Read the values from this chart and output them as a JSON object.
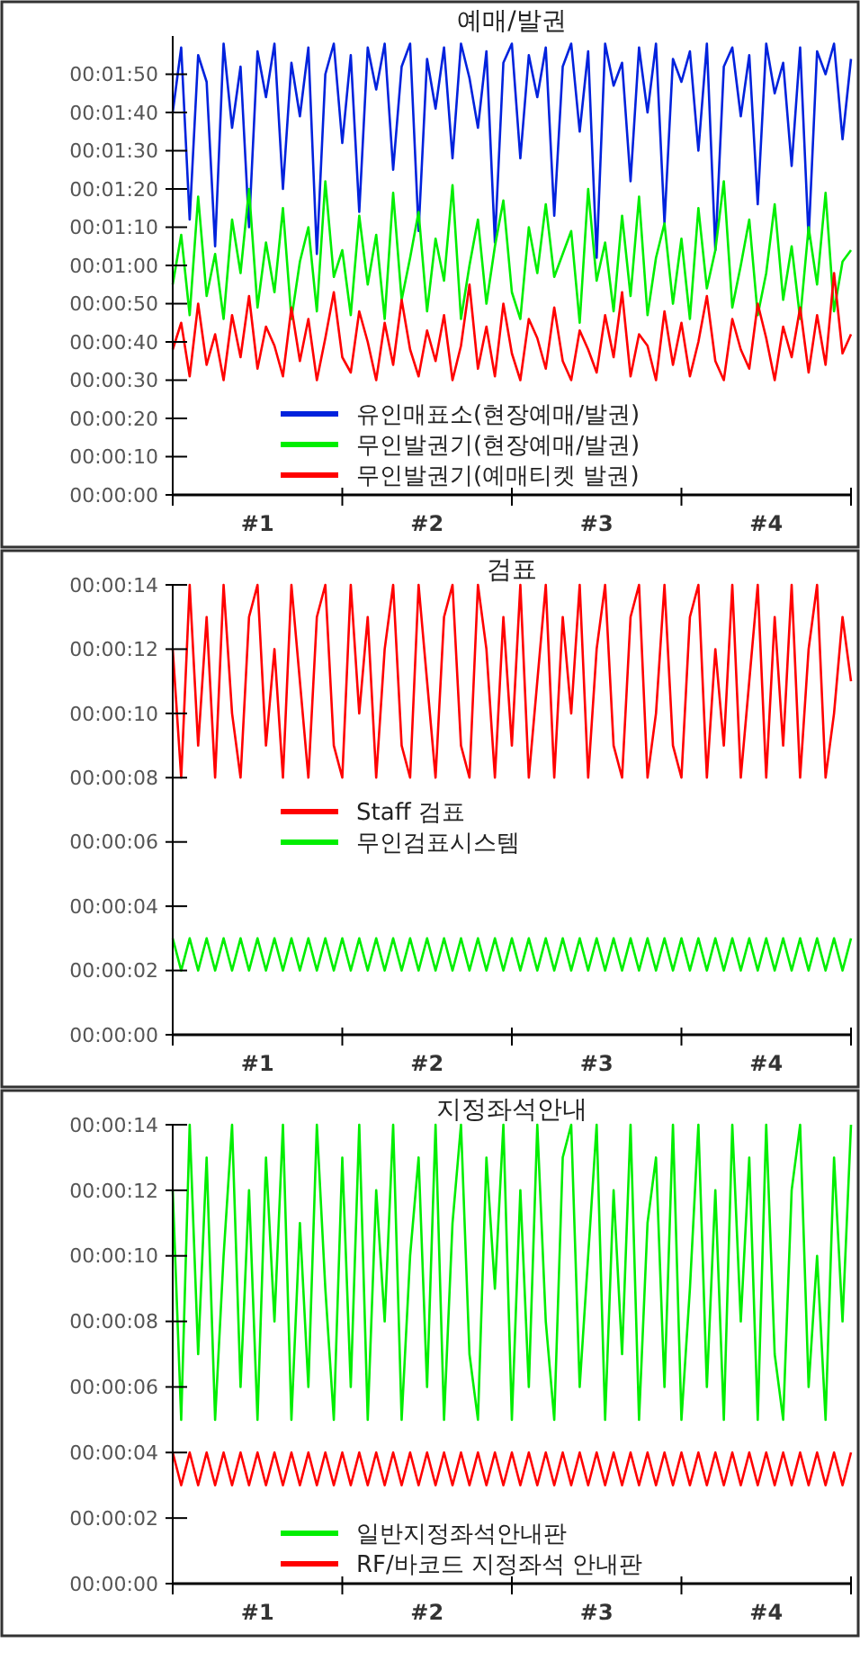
{
  "chart_data": [
    {
      "type": "line",
      "title": "예매/발권",
      "x": [
        0,
        0.05,
        0.1,
        0.15,
        0.2,
        0.25,
        0.3,
        0.35,
        0.4,
        0.45,
        0.5,
        0.55,
        0.6,
        0.65,
        0.7,
        0.75,
        0.8,
        0.85,
        0.9,
        0.95,
        1,
        1.05,
        1.1,
        1.15,
        1.2,
        1.25,
        1.3,
        1.35,
        1.4,
        1.45,
        1.5,
        1.55,
        1.6,
        1.65,
        1.7,
        1.75,
        1.8,
        1.85,
        1.9,
        1.95,
        2,
        2.05,
        2.1,
        2.15,
        2.2,
        2.25,
        2.3,
        2.35,
        2.4,
        2.45,
        2.5,
        2.55,
        2.6,
        2.65,
        2.7,
        2.75,
        2.8,
        2.85,
        2.9,
        2.95,
        3,
        3.05,
        3.1,
        3.15,
        3.2,
        3.25,
        3.3,
        3.35,
        3.4,
        3.45,
        3.5,
        3.55,
        3.6,
        3.65,
        3.7,
        3.75,
        3.8,
        3.85,
        3.9,
        3.95,
        4
      ],
      "xlim": [
        0,
        4
      ],
      "xticks": [
        {
          "value": 0,
          "label": null
        },
        {
          "value": 0.5,
          "label": "#1"
        },
        {
          "value": 1,
          "label": null
        },
        {
          "value": 1.5,
          "label": "#2"
        },
        {
          "value": 2,
          "label": null
        },
        {
          "value": 2.5,
          "label": "#3"
        },
        {
          "value": 3,
          "label": null
        },
        {
          "value": 3.5,
          "label": "#4"
        },
        {
          "value": 4,
          "label": null
        }
      ],
      "ylim": [
        0,
        120
      ],
      "yticks": [
        {
          "value": 0,
          "label": "00:00:00"
        },
        {
          "value": 10,
          "label": "00:00:10"
        },
        {
          "value": 20,
          "label": "00:00:20"
        },
        {
          "value": 30,
          "label": "00:00:30"
        },
        {
          "value": 40,
          "label": "00:00:40"
        },
        {
          "value": 50,
          "label": "00:00:50"
        },
        {
          "value": 60,
          "label": "00:01:00"
        },
        {
          "value": 70,
          "label": "00:01:10"
        },
        {
          "value": 80,
          "label": "00:01:20"
        },
        {
          "value": 90,
          "label": "00:01:30"
        },
        {
          "value": 100,
          "label": "00:01:40"
        },
        {
          "value": 110,
          "label": "00:01:50"
        }
      ],
      "legend": "bottom",
      "grid": false,
      "series": [
        {
          "name": "유인매표소(현장예매/발권)",
          "color": "#0022dd",
          "values": [
            100,
            117,
            72,
            115,
            108,
            65,
            118,
            96,
            112,
            70,
            116,
            104,
            118,
            80,
            113,
            99,
            117,
            63,
            110,
            118,
            92,
            115,
            74,
            117,
            106,
            118,
            85,
            112,
            118,
            69,
            114,
            101,
            117,
            88,
            118,
            109,
            96,
            116,
            66,
            113,
            118,
            88,
            115,
            104,
            117,
            73,
            112,
            118,
            95,
            116,
            62,
            118,
            107,
            113,
            82,
            117,
            100,
            118,
            71,
            114,
            108,
            116,
            90,
            118,
            64,
            112,
            117,
            99,
            115,
            76,
            118,
            105,
            113,
            86,
            117,
            67,
            116,
            110,
            118,
            93,
            114
          ]
        },
        {
          "name": "무인발권기(현장예매/발권)",
          "color": "#00ee00",
          "values": [
            55,
            68,
            47,
            78,
            52,
            63,
            46,
            72,
            58,
            80,
            49,
            66,
            53,
            75,
            46,
            61,
            70,
            48,
            82,
            57,
            64,
            47,
            73,
            55,
            68,
            46,
            79,
            51,
            62,
            74,
            48,
            67,
            56,
            81,
            46,
            60,
            72,
            50,
            65,
            77,
            53,
            46,
            70,
            58,
            76,
            57,
            63,
            69,
            45,
            80,
            56,
            66,
            48,
            73,
            52,
            78,
            47,
            62,
            71,
            50,
            67,
            46,
            75,
            54,
            64,
            82,
            49,
            60,
            72,
            47,
            58,
            76,
            51,
            65,
            46,
            70,
            55,
            79,
            48,
            61,
            64
          ]
        },
        {
          "name": "무인발권기(예매티켓 발권)",
          "color": "#ff0000",
          "values": [
            38,
            45,
            31,
            50,
            34,
            42,
            30,
            47,
            36,
            52,
            33,
            44,
            39,
            31,
            49,
            35,
            46,
            30,
            41,
            53,
            36,
            32,
            48,
            40,
            30,
            45,
            34,
            51,
            38,
            31,
            43,
            35,
            47,
            30,
            39,
            55,
            33,
            44,
            31,
            50,
            37,
            30,
            46,
            41,
            33,
            49,
            35,
            30,
            43,
            38,
            32,
            47,
            36,
            53,
            31,
            42,
            39,
            30,
            48,
            34,
            45,
            31,
            40,
            52,
            35,
            30,
            46,
            38,
            33,
            50,
            41,
            30,
            44,
            36,
            49,
            32,
            47,
            34,
            58,
            37,
            42
          ]
        }
      ]
    },
    {
      "type": "line",
      "title": "검표",
      "x": [
        0,
        0.05,
        0.1,
        0.15,
        0.2,
        0.25,
        0.3,
        0.35,
        0.4,
        0.45,
        0.5,
        0.55,
        0.6,
        0.65,
        0.7,
        0.75,
        0.8,
        0.85,
        0.9,
        0.95,
        1,
        1.05,
        1.1,
        1.15,
        1.2,
        1.25,
        1.3,
        1.35,
        1.4,
        1.45,
        1.5,
        1.55,
        1.6,
        1.65,
        1.7,
        1.75,
        1.8,
        1.85,
        1.9,
        1.95,
        2,
        2.05,
        2.1,
        2.15,
        2.2,
        2.25,
        2.3,
        2.35,
        2.4,
        2.45,
        2.5,
        2.55,
        2.6,
        2.65,
        2.7,
        2.75,
        2.8,
        2.85,
        2.9,
        2.95,
        3,
        3.05,
        3.1,
        3.15,
        3.2,
        3.25,
        3.3,
        3.35,
        3.4,
        3.45,
        3.5,
        3.55,
        3.6,
        3.65,
        3.7,
        3.75,
        3.8,
        3.85,
        3.9,
        3.95,
        4
      ],
      "xlim": [
        0,
        4
      ],
      "xticks": [
        {
          "value": 0,
          "label": null
        },
        {
          "value": 0.5,
          "label": "#1"
        },
        {
          "value": 1,
          "label": null
        },
        {
          "value": 1.5,
          "label": "#2"
        },
        {
          "value": 2,
          "label": null
        },
        {
          "value": 2.5,
          "label": "#3"
        },
        {
          "value": 3,
          "label": null
        },
        {
          "value": 3.5,
          "label": "#4"
        },
        {
          "value": 4,
          "label": null
        }
      ],
      "ylim": [
        0,
        14
      ],
      "yticks": [
        {
          "value": 0,
          "label": "00:00:00"
        },
        {
          "value": 2,
          "label": "00:00:02"
        },
        {
          "value": 4,
          "label": "00:00:04"
        },
        {
          "value": 6,
          "label": "00:00:06"
        },
        {
          "value": 8,
          "label": "00:00:08"
        },
        {
          "value": 10,
          "label": "00:00:10"
        },
        {
          "value": 12,
          "label": "00:00:12"
        },
        {
          "value": 14,
          "label": "00:00:14"
        }
      ],
      "legend": "center",
      "grid": false,
      "series": [
        {
          "name": "Staff 검표",
          "color": "#ff0000",
          "values": [
            12,
            8,
            14,
            9,
            13,
            8,
            14,
            10,
            8,
            13,
            14,
            9,
            12,
            8,
            14,
            11,
            8,
            13,
            14,
            9,
            8,
            14,
            10,
            13,
            8,
            12,
            14,
            9,
            8,
            14,
            11,
            8,
            13,
            14,
            9,
            8,
            14,
            12,
            8,
            13,
            9,
            14,
            8,
            11,
            14,
            8,
            13,
            10,
            14,
            8,
            12,
            14,
            9,
            8,
            13,
            14,
            8,
            10,
            14,
            9,
            8,
            13,
            14,
            8,
            12,
            9,
            14,
            8,
            11,
            14,
            8,
            13,
            9,
            14,
            8,
            12,
            14,
            8,
            10,
            13,
            11
          ]
        },
        {
          "name": "무인검표시스템",
          "color": "#00ee00",
          "values": [
            3,
            2,
            3,
            2,
            3,
            2,
            3,
            2,
            3,
            2,
            3,
            2,
            3,
            2,
            3,
            2,
            3,
            2,
            3,
            2,
            3,
            2,
            3,
            2,
            3,
            2,
            3,
            2,
            3,
            2,
            3,
            2,
            3,
            2,
            3,
            2,
            3,
            2,
            3,
            2,
            3,
            2,
            3,
            2,
            3,
            2,
            3,
            2,
            3,
            2,
            3,
            2,
            3,
            2,
            3,
            2,
            3,
            2,
            3,
            2,
            3,
            2,
            3,
            2,
            3,
            2,
            3,
            2,
            3,
            2,
            3,
            2,
            3,
            2,
            3,
            2,
            3,
            2,
            3,
            2,
            3
          ]
        }
      ]
    },
    {
      "type": "line",
      "title": "지정좌석안내",
      "x": [
        0,
        0.05,
        0.1,
        0.15,
        0.2,
        0.25,
        0.3,
        0.35,
        0.4,
        0.45,
        0.5,
        0.55,
        0.6,
        0.65,
        0.7,
        0.75,
        0.8,
        0.85,
        0.9,
        0.95,
        1,
        1.05,
        1.1,
        1.15,
        1.2,
        1.25,
        1.3,
        1.35,
        1.4,
        1.45,
        1.5,
        1.55,
        1.6,
        1.65,
        1.7,
        1.75,
        1.8,
        1.85,
        1.9,
        1.95,
        2,
        2.05,
        2.1,
        2.15,
        2.2,
        2.25,
        2.3,
        2.35,
        2.4,
        2.45,
        2.5,
        2.55,
        2.6,
        2.65,
        2.7,
        2.75,
        2.8,
        2.85,
        2.9,
        2.95,
        3,
        3.05,
        3.1,
        3.15,
        3.2,
        3.25,
        3.3,
        3.35,
        3.4,
        3.45,
        3.5,
        3.55,
        3.6,
        3.65,
        3.7,
        3.75,
        3.8,
        3.85,
        3.9,
        3.95,
        4
      ],
      "xlim": [
        0,
        4
      ],
      "xticks": [
        {
          "value": 0,
          "label": null
        },
        {
          "value": 0.5,
          "label": "#1"
        },
        {
          "value": 1,
          "label": null
        },
        {
          "value": 1.5,
          "label": "#2"
        },
        {
          "value": 2,
          "label": null
        },
        {
          "value": 2.5,
          "label": "#3"
        },
        {
          "value": 3,
          "label": null
        },
        {
          "value": 3.5,
          "label": "#4"
        },
        {
          "value": 4,
          "label": null
        }
      ],
      "ylim": [
        0,
        14
      ],
      "yticks": [
        {
          "value": 0,
          "label": "00:00:00"
        },
        {
          "value": 2,
          "label": "00:00:02"
        },
        {
          "value": 4,
          "label": "00:00:04"
        },
        {
          "value": 6,
          "label": "00:00:06"
        },
        {
          "value": 8,
          "label": "00:00:08"
        },
        {
          "value": 10,
          "label": "00:00:10"
        },
        {
          "value": 12,
          "label": "00:00:12"
        },
        {
          "value": 14,
          "label": "00:00:14"
        }
      ],
      "legend": "bottom",
      "grid": false,
      "series": [
        {
          "name": "일반지정좌석안내판",
          "color": "#00ee00",
          "values": [
            12,
            5,
            14,
            7,
            13,
            5,
            10,
            14,
            6,
            12,
            5,
            13,
            8,
            14,
            5,
            11,
            6,
            14,
            9,
            5,
            13,
            6,
            14,
            5,
            12,
            8,
            14,
            5,
            10,
            13,
            6,
            14,
            5,
            11,
            14,
            7,
            5,
            13,
            9,
            14,
            5,
            12,
            6,
            14,
            8,
            5,
            13,
            14,
            6,
            10,
            14,
            5,
            12,
            7,
            14,
            5,
            11,
            13,
            6,
            14,
            5,
            9,
            14,
            6,
            12,
            5,
            14,
            8,
            13,
            5,
            14,
            7,
            5,
            12,
            14,
            6,
            10,
            5,
            13,
            8,
            14
          ]
        },
        {
          "name": "RF/바코드 지정좌석 안내판",
          "color": "#ff0000",
          "values": [
            4,
            3,
            4,
            3,
            4,
            3,
            4,
            3,
            4,
            3,
            4,
            3,
            4,
            3,
            4,
            3,
            4,
            3,
            4,
            3,
            4,
            3,
            4,
            3,
            4,
            3,
            4,
            3,
            4,
            3,
            4,
            3,
            4,
            3,
            4,
            3,
            4,
            3,
            4,
            3,
            4,
            3,
            4,
            3,
            4,
            3,
            4,
            3,
            4,
            3,
            4,
            3,
            4,
            3,
            4,
            3,
            4,
            3,
            4,
            3,
            4,
            3,
            4,
            3,
            4,
            3,
            4,
            3,
            4,
            3,
            4,
            3,
            4,
            3,
            4,
            3,
            4,
            3,
            4,
            3,
            4
          ]
        }
      ]
    }
  ]
}
